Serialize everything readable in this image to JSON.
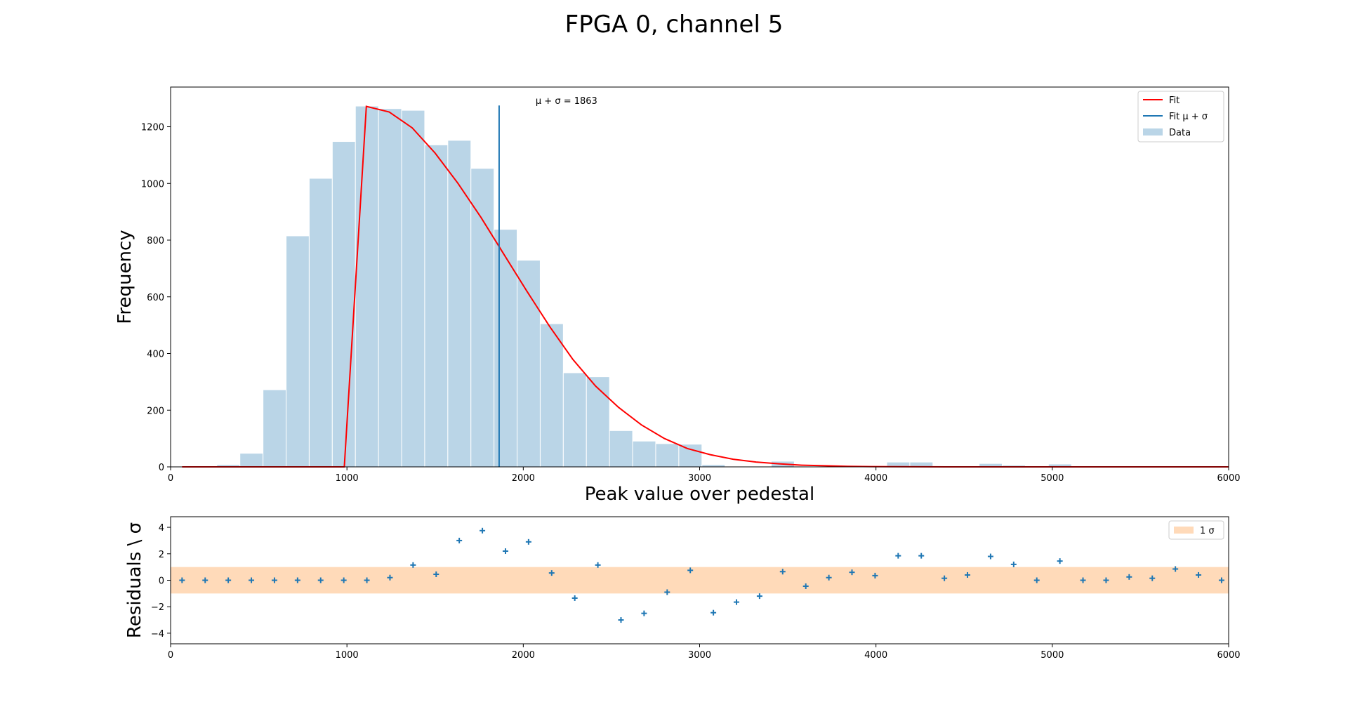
{
  "title": "FPGA 0, channel 5",
  "colors": {
    "data": "#bad5e7",
    "data_edge": "#ffffff",
    "fit": "#ff0000",
    "fit_marker": "#1f77b4",
    "residual_marker": "#1f77b4",
    "band": "#ffdab9"
  },
  "chart_data": [
    {
      "type": "bar",
      "name": "histogram",
      "xlabel": "Peak value over pedestal",
      "ylabel": "Frequency",
      "xlim": [
        0,
        6000
      ],
      "ylim": [
        0,
        1340
      ],
      "xticks": [
        0,
        1000,
        2000,
        3000,
        4000,
        5000,
        6000
      ],
      "yticks": [
        0,
        200,
        400,
        600,
        800,
        1000,
        1200
      ],
      "grid": false,
      "legend_position": "top-right",
      "legend": [
        {
          "label": "Fit",
          "kind": "line",
          "color": "#ff0000"
        },
        {
          "label": "Fit μ + σ",
          "kind": "line",
          "color": "#1f77b4"
        },
        {
          "label": "Data",
          "kind": "patch",
          "color": "#bad5e7"
        }
      ],
      "bin_width": 131,
      "bins": [
        [
          0,
          0
        ],
        [
          131,
          2
        ],
        [
          262,
          8
        ],
        [
          393,
          48
        ],
        [
          524,
          272
        ],
        [
          655,
          815
        ],
        [
          786,
          1018
        ],
        [
          917,
          1148
        ],
        [
          1048,
          1273
        ],
        [
          1179,
          1264
        ],
        [
          1310,
          1258
        ],
        [
          1441,
          1136
        ],
        [
          1572,
          1152
        ],
        [
          1703,
          1053
        ],
        [
          1834,
          838
        ],
        [
          1965,
          729
        ],
        [
          2096,
          505
        ],
        [
          2227,
          332
        ],
        [
          2358,
          318
        ],
        [
          2489,
          128
        ],
        [
          2620,
          91
        ],
        [
          2751,
          82
        ],
        [
          2882,
          80
        ],
        [
          3013,
          8
        ],
        [
          3144,
          0
        ],
        [
          3275,
          2
        ],
        [
          3406,
          20
        ],
        [
          3537,
          0
        ],
        [
          3668,
          0
        ],
        [
          3799,
          1
        ],
        [
          3930,
          1
        ],
        [
          4061,
          17
        ],
        [
          4192,
          17
        ],
        [
          4323,
          2
        ],
        [
          4454,
          0
        ],
        [
          4585,
          12
        ],
        [
          4716,
          6
        ],
        [
          4847,
          1
        ],
        [
          4978,
          10
        ],
        [
          5109,
          0
        ],
        [
          5240,
          0
        ],
        [
          5371,
          0
        ],
        [
          5502,
          0
        ],
        [
          5633,
          0
        ],
        [
          5764,
          0
        ],
        [
          5895,
          0
        ]
      ],
      "fit_curve": [
        [
          65,
          0
        ],
        [
          400,
          0
        ],
        [
          700,
          0
        ],
        [
          985,
          0
        ],
        [
          1110,
          1272
        ],
        [
          1240,
          1252
        ],
        [
          1370,
          1196
        ],
        [
          1500,
          1107
        ],
        [
          1630,
          1000
        ],
        [
          1760,
          880
        ],
        [
          1890,
          750
        ],
        [
          2020,
          620
        ],
        [
          2150,
          495
        ],
        [
          2280,
          380
        ],
        [
          2410,
          285
        ],
        [
          2540,
          210
        ],
        [
          2670,
          148
        ],
        [
          2800,
          100
        ],
        [
          2930,
          65
        ],
        [
          3060,
          43
        ],
        [
          3190,
          27
        ],
        [
          3320,
          17
        ],
        [
          3450,
          11
        ],
        [
          3580,
          6
        ],
        [
          3710,
          4
        ],
        [
          3840,
          2
        ],
        [
          3970,
          1
        ],
        [
          4100,
          0.5
        ],
        [
          4400,
          0
        ],
        [
          6000,
          0
        ]
      ],
      "fit_mu_sigma": {
        "x": 1863,
        "y_top": 1275
      },
      "annotation": {
        "prefix": "μ + σ = ",
        "value": "1863",
        "x": 2070,
        "y": 1280
      }
    },
    {
      "type": "scatter",
      "name": "residuals",
      "xlabel": "",
      "ylabel": "Residuals \\ σ",
      "xlim": [
        0,
        6000
      ],
      "ylim": [
        -4.8,
        4.8
      ],
      "xticks": [
        0,
        1000,
        2000,
        3000,
        4000,
        5000,
        6000
      ],
      "yticks": [
        -4,
        -2,
        0,
        2,
        4
      ],
      "band": [
        -1,
        1
      ],
      "legend_position": "top-right",
      "legend": [
        {
          "label": "1 σ",
          "kind": "patch",
          "color": "#ffdab9"
        }
      ],
      "points": [
        [
          65,
          0
        ],
        [
          196,
          0
        ],
        [
          327,
          0
        ],
        [
          458,
          0
        ],
        [
          589,
          0
        ],
        [
          720,
          0
        ],
        [
          851,
          0
        ],
        [
          982,
          0
        ],
        [
          1113,
          0
        ],
        [
          1244,
          0.2
        ],
        [
          1375,
          1.15
        ],
        [
          1506,
          0.45
        ],
        [
          1637,
          3.0
        ],
        [
          1768,
          3.75
        ],
        [
          1899,
          2.2
        ],
        [
          2030,
          2.9
        ],
        [
          2161,
          0.55
        ],
        [
          2292,
          -1.35
        ],
        [
          2423,
          1.15
        ],
        [
          2554,
          -3.0
        ],
        [
          2685,
          -2.5
        ],
        [
          2816,
          -0.9
        ],
        [
          2947,
          0.75
        ],
        [
          3078,
          -2.45
        ],
        [
          3209,
          -1.65
        ],
        [
          3340,
          -1.2
        ],
        [
          3471,
          0.65
        ],
        [
          3602,
          -0.45
        ],
        [
          3733,
          0.2
        ],
        [
          3864,
          0.6
        ],
        [
          3995,
          0.35
        ],
        [
          4126,
          1.85
        ],
        [
          4257,
          1.85
        ],
        [
          4388,
          0.15
        ],
        [
          4519,
          0.4
        ],
        [
          4650,
          1.8
        ],
        [
          4781,
          1.2
        ],
        [
          4912,
          0.0
        ],
        [
          5043,
          1.45
        ],
        [
          5174,
          0.0
        ],
        [
          5305,
          0.0
        ],
        [
          5436,
          0.25
        ],
        [
          5567,
          0.15
        ],
        [
          5698,
          0.85
        ],
        [
          5829,
          0.4
        ],
        [
          5960,
          0.0
        ]
      ]
    }
  ]
}
